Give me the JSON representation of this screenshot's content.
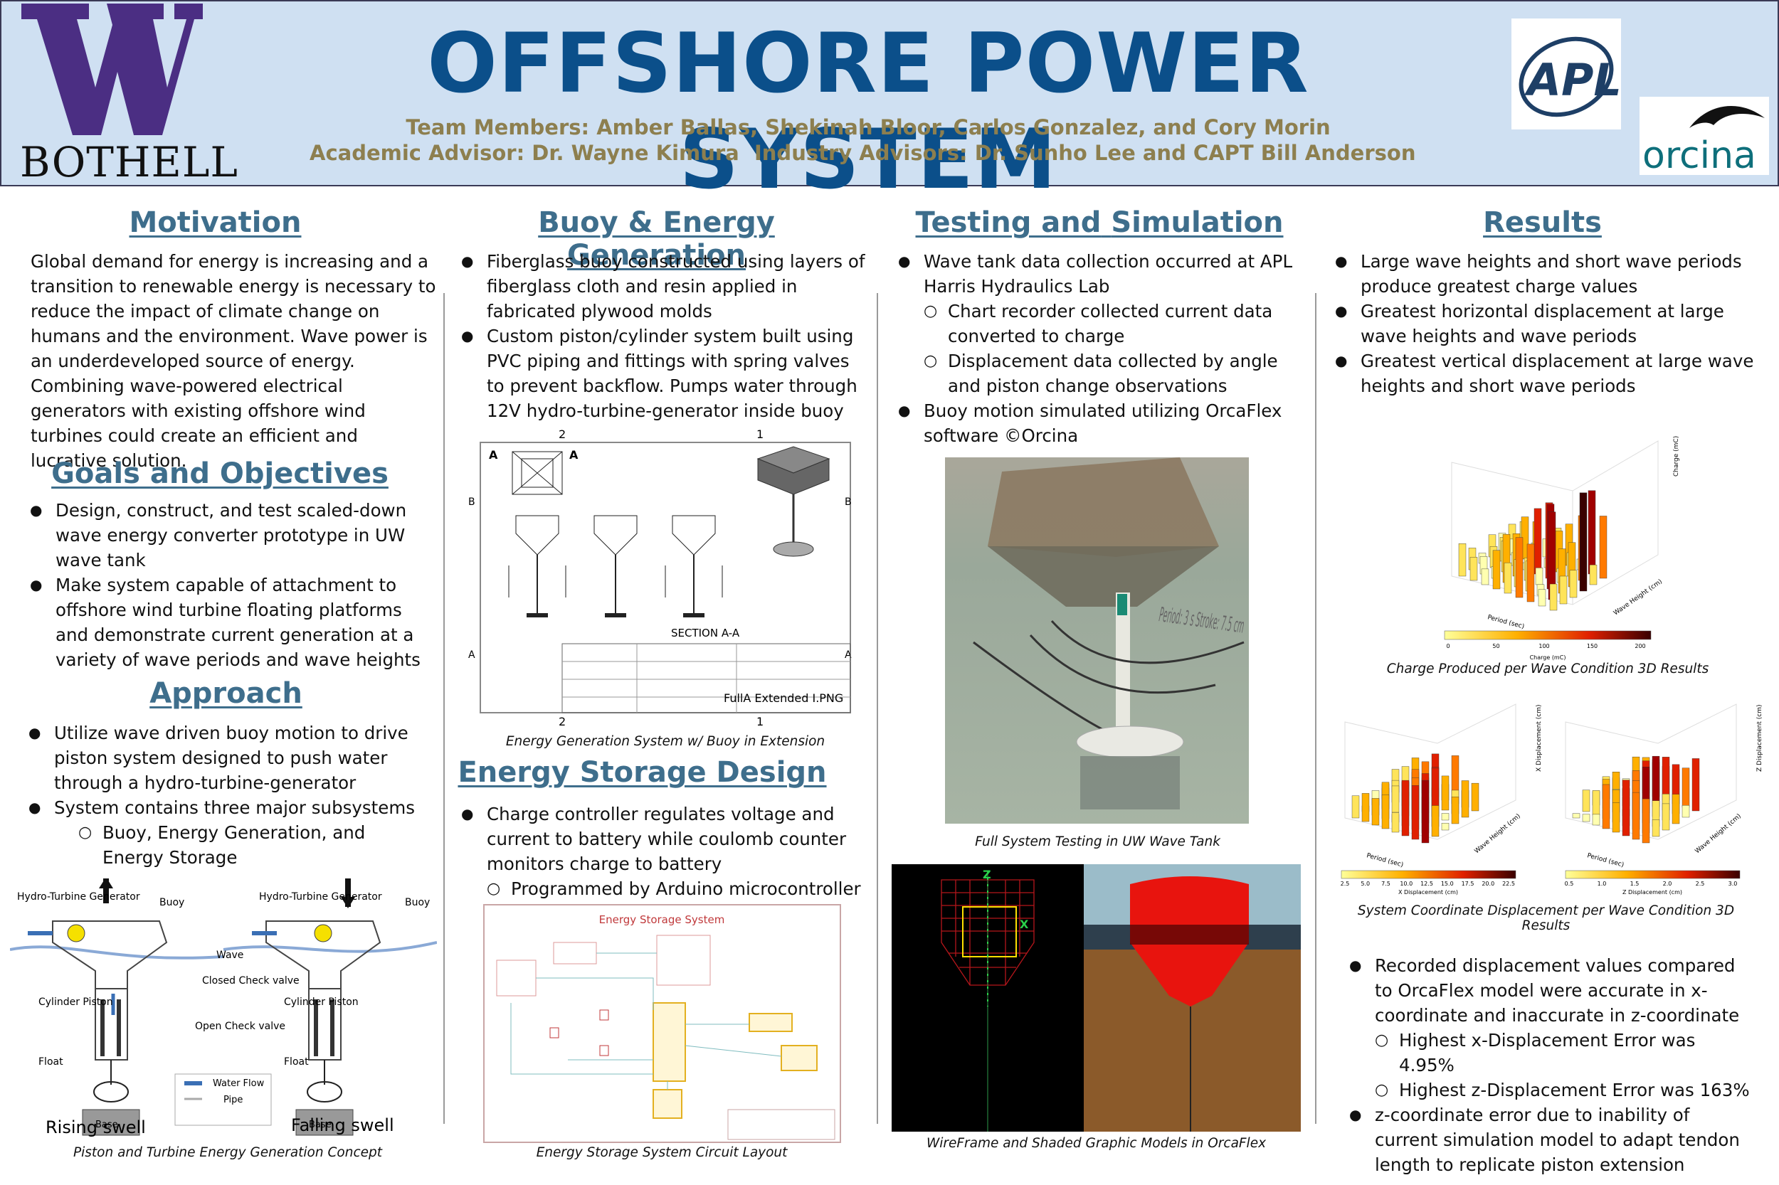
{
  "header": {
    "title": "OFFSHORE POWER SYSTEM",
    "team": "Team Members: Amber Ballas, Shekinah Bloor, Carlos Gonzalez, and Cory Morin",
    "academic_advisor": "Academic Advisor: Dr. Wayne Kimura",
    "industry_advisors": "Industry Advisors: Dr. Sunho Lee and CAPT Bill Anderson",
    "uw_logo_letter": "W",
    "uw_logo_text": "BOTHELL",
    "apl_logo_text": "APL",
    "orcina_logo_text": "orcina"
  },
  "motivation": {
    "heading": "Motivation",
    "text": "Global demand for energy is increasing and a transition to renewable energy is necessary to reduce the impact of climate change on humans and the environment. Wave power is an underdeveloped source of energy. Combining wave-powered electrical generators with existing offshore wind turbines could create an efficient and lucrative solution."
  },
  "goals": {
    "heading": "Goals and Objectives",
    "items": [
      "Design, construct, and test scaled-down wave energy converter prototype in UW wave tank",
      "Make system capable of attachment to offshore wind turbine floating platforms and demonstrate current generation at a variety of wave periods and wave heights"
    ]
  },
  "approach": {
    "heading": "Approach",
    "items": [
      "Utilize wave driven buoy motion to drive piston system designed to push water through a hydro-turbine-generator",
      "System contains three major subsystems"
    ],
    "sub_item": "Buoy, Energy Generation, and Energy Storage",
    "figure": {
      "labels": {
        "hydro_turbine": "Hydro-Turbine Generator",
        "buoy": "Buoy",
        "wave": "Wave",
        "closed_check": "Closed Check valve",
        "open_check": "Open Check valve",
        "cylinder_piston": "Cylinder Piston",
        "float": "Float",
        "base": "Base",
        "water_flow": "Water Flow",
        "pipe": "Pipe",
        "rising": "Rising swell",
        "falling": "Falling swell"
      },
      "caption": "Piston and Turbine Energy Generation Concept"
    }
  },
  "buoy": {
    "heading": "Buoy & Energy Generation",
    "items": [
      "Fiberglass buoy constructed using layers of fiberglass cloth and resin applied in fabricated plywood molds",
      "Custom piston/cylinder system built using PVC piping and fittings with spring valves to prevent backflow. Pumps water through 12V hydro-turbine-generator inside buoy"
    ],
    "drawing": {
      "section_label": "SECTION A-A",
      "zone_top_left": "2",
      "zone_top_right": "1",
      "zone_b": "B",
      "zone_a": "A",
      "title_block": "FullA Extended I.PNG"
    },
    "caption": "Energy Generation System w/ Buoy in Extension"
  },
  "storage": {
    "heading": "Energy Storage Design",
    "items": [
      "Charge controller regulates voltage and current to battery while coulomb counter monitors charge to battery"
    ],
    "sub_item": "Programmed by Arduino microcontroller",
    "schematic_title": "Energy Storage System",
    "caption": "Energy Storage System Circuit Layout"
  },
  "testing": {
    "heading_part1": "Testing and",
    "heading_part2": "Simulation",
    "items": [
      "Wave tank data collection occurred at APL Harris Hydraulics Lab",
      "Buoy motion simulated utilizing OrcaFlex software ©Orcina"
    ],
    "sub_items": [
      "Chart recorder collected current data converted to charge",
      "Displacement data collected by angle and piston change observations"
    ],
    "photo_caption": "Full System Testing in UW Wave Tank",
    "photo_text": "Period: 3 s Stroke: 7.5 cm",
    "orcaflex_caption": "WireFrame and Shaded Graphic Models in OrcaFlex",
    "wireframe_x": "X",
    "wireframe_z": "Z"
  },
  "results": {
    "heading": "Results",
    "items": [
      "Large wave heights and short wave periods produce greatest charge values",
      "Greatest horizontal displacement at large wave heights and wave periods",
      "Greatest vertical displacement at large wave heights and short wave periods"
    ],
    "charge_caption": "Charge Produced per Wave Condition 3D Results",
    "displacement_caption": "System Coordinate Displacement per Wave Condition 3D Results",
    "charge_colorbar_label": "Charge (mC)",
    "charge_colorbar_ticks": [
      "0",
      "50",
      "100",
      "150",
      "200"
    ],
    "x_colorbar_label": "X Displacement (cm)",
    "x_colorbar_ticks": [
      "2.5",
      "5.0",
      "7.5",
      "10.0",
      "12.5",
      "15.0",
      "17.5",
      "20.0",
      "22.5"
    ],
    "z_colorbar_label": "Z Displacement (cm)",
    "z_colorbar_ticks": [
      "0.5",
      "1.0",
      "1.5",
      "2.0",
      "2.5",
      "3.0"
    ],
    "axis_period": "Period (sec)",
    "axis_wave_height": "Wave Height (cm)",
    "axis_charge": "Charge (mC)",
    "axis_x_disp": "X Displacement (cm)",
    "axis_z_disp": "Z Displacement (cm)",
    "more_items": [
      "Recorded displacement values compared to OrcaFlex model were accurate in x-coordinate and inaccurate in z-coordinate",
      "z-coordinate error due to inability of current simulation model to adapt tendon length to replicate piston extension"
    ],
    "more_sub_items": [
      "Highest x-Displacement Error was 4.95%",
      "Highest z-Displacement Error was 163%"
    ]
  },
  "colors": {
    "title": "#0b4f8a",
    "heading": "#3e6e8c",
    "advisor_text": "#8d7f4f",
    "header_bg": "#cfe0f2",
    "uw_purple": "#4b2e83",
    "orcina_teal": "#0e6f7b"
  }
}
